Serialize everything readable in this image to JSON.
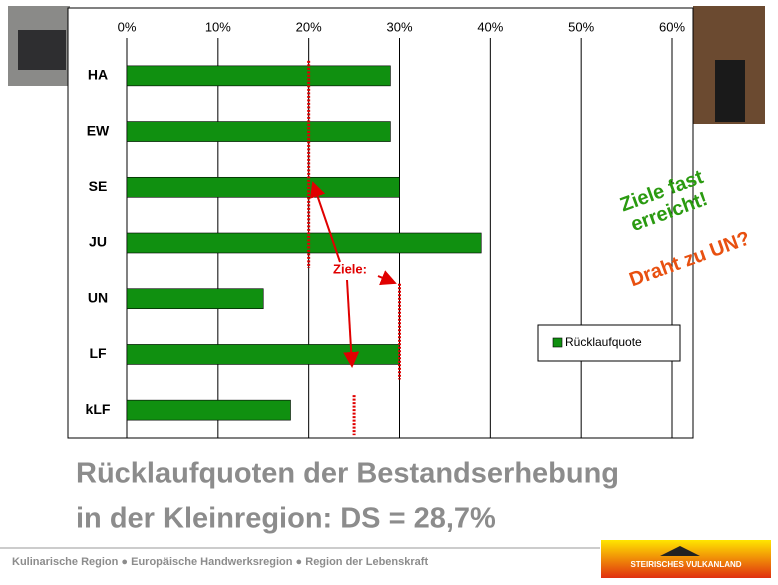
{
  "chart_data": {
    "type": "bar",
    "orientation": "horizontal",
    "categories": [
      "HA",
      "EW",
      "SE",
      "JU",
      "UN",
      "LF",
      "kLF"
    ],
    "series": [
      {
        "name": "Rücklaufquote",
        "color": "#109010",
        "values": [
          29,
          29,
          30,
          39,
          15,
          30,
          18
        ]
      }
    ],
    "xlim": [
      0,
      60
    ],
    "xticks": [
      {
        "value": 0,
        "label": "0%"
      },
      {
        "value": 10,
        "label": "10%"
      },
      {
        "value": 20,
        "label": "20%"
      },
      {
        "value": 30,
        "label": "30%"
      },
      {
        "value": 40,
        "label": "40%"
      },
      {
        "value": 50,
        "label": "50%"
      },
      {
        "value": 60,
        "label": "60%"
      }
    ],
    "grid": true,
    "legend": "right",
    "goal_lines": [
      {
        "value": 20,
        "color": "#e00000"
      },
      {
        "value": 30,
        "color": "#e00000"
      },
      {
        "value": 25,
        "color": "#e00000"
      }
    ],
    "goal_label": "Ziele:",
    "annotations": [
      {
        "lines": [
          "Ziele fast",
          "erreicht!"
        ],
        "color": "#2a9a10"
      },
      {
        "lines": [
          "Draht zu UN?"
        ],
        "color": "#e85010"
      }
    ]
  },
  "slide": {
    "title_lines": [
      "Rücklaufquoten der Bestandserhebung",
      "in der Kleinregion: DS = 28,7%"
    ],
    "footer": "Kulinarische Region ● Europäische Handwerksregion ● Region der Lebenskraft",
    "logo": "STEIRISCHES VULKANLAND"
  }
}
